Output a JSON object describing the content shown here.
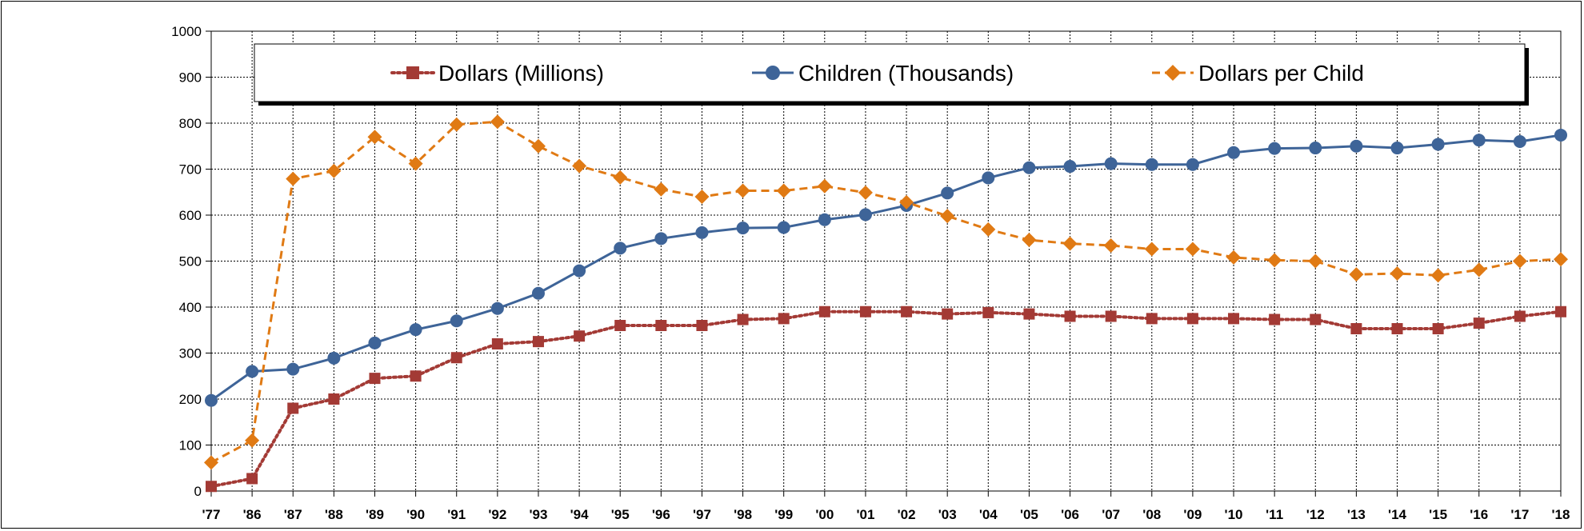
{
  "chart_data": {
    "type": "line",
    "categories": [
      "'77",
      "'86",
      "'87",
      "'88",
      "'89",
      "'90",
      "'91",
      "'92",
      "'93",
      "'94",
      "'95",
      "'96",
      "'97",
      "'98",
      "'99",
      "'00",
      "'01",
      "'02",
      "'03",
      "'04",
      "'05",
      "'06",
      "'07",
      "'08",
      "'09",
      "'10",
      "'11",
      "'12",
      "'13",
      "'14",
      "'15",
      "'16",
      "'17",
      "'18"
    ],
    "ylim": [
      0,
      1000
    ],
    "yticks": [
      0,
      100,
      200,
      300,
      400,
      500,
      600,
      700,
      800,
      900,
      1000
    ],
    "grid": true,
    "legend_position": "top",
    "series": [
      {
        "name": "Dollars (Millions)",
        "color": "#a33a35",
        "marker": "square",
        "line_style": "dotted",
        "values": [
          10,
          27,
          180,
          200,
          245,
          250,
          290,
          320,
          325,
          337,
          360,
          360,
          360,
          373,
          375,
          390,
          390,
          390,
          385,
          388,
          385,
          380,
          380,
          375,
          375,
          375,
          373,
          373,
          353,
          353,
          353,
          365,
          380,
          390
        ]
      },
      {
        "name": "Children (Thousands)",
        "color": "#3e6498",
        "marker": "circle",
        "line_style": "solid",
        "values": [
          197,
          260,
          265,
          289,
          322,
          351,
          370,
          397,
          430,
          479,
          528,
          549,
          562,
          572,
          573,
          590,
          601,
          621,
          648,
          681,
          703,
          706,
          712,
          710,
          710,
          736,
          745,
          746,
          750,
          746,
          754,
          763,
          760,
          774
        ]
      },
      {
        "name": "Dollars per Child",
        "color": "#e07a14",
        "marker": "diamond",
        "line_style": "dashed",
        "values": [
          62,
          110,
          679,
          696,
          770,
          712,
          797,
          803,
          750,
          707,
          682,
          656,
          640,
          653,
          653,
          663,
          649,
          628,
          598,
          569,
          546,
          538,
          534,
          526,
          526,
          508,
          502,
          500,
          471,
          473,
          469,
          481,
          500,
          504
        ]
      }
    ]
  }
}
